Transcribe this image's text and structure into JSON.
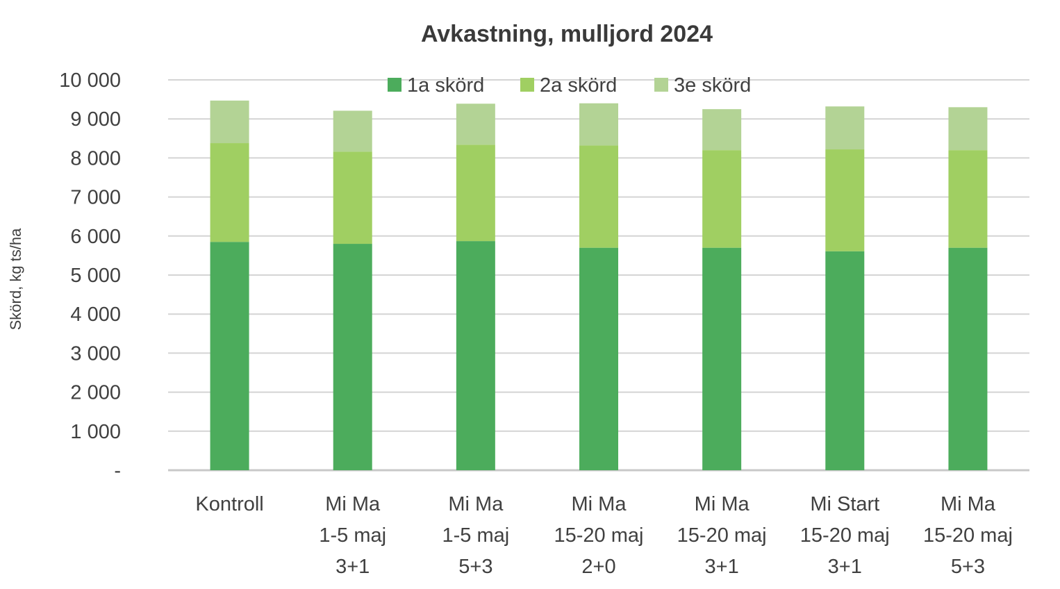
{
  "chart_data": {
    "type": "bar",
    "stacked": true,
    "title": "Avkastning, mulljord 2024",
    "ylabel": "Skörd, kg ts/ha",
    "xlabel": "",
    "ylim": [
      0,
      10000
    ],
    "yticks": [
      0,
      1000,
      2000,
      3000,
      4000,
      5000,
      6000,
      7000,
      8000,
      9000,
      10000
    ],
    "ytick_labels": [
      "-",
      "1 000",
      "2 000",
      "3 000",
      "4 000",
      "5 000",
      "6 000",
      "7 000",
      "8 000",
      "9 000",
      "10 000"
    ],
    "grid": true,
    "legend_position": "top",
    "categories": [
      [
        "Kontroll"
      ],
      [
        "Mi Ma",
        "1-5 maj",
        "3+1"
      ],
      [
        "Mi Ma",
        "1-5 maj",
        "5+3"
      ],
      [
        "Mi Ma",
        "15-20 maj",
        "2+0"
      ],
      [
        "Mi Ma",
        "15-20 maj",
        "3+1"
      ],
      [
        "Mi Start",
        "15-20 maj",
        "3+1"
      ],
      [
        "Mi Ma",
        "15-20 maj",
        "5+3"
      ]
    ],
    "series": [
      {
        "name": "1a skörd",
        "color": "#4cac5c",
        "values": [
          5850,
          5800,
          5870,
          5700,
          5700,
          5610,
          5700
        ]
      },
      {
        "name": "2a skörd",
        "color": "#a0cf62",
        "values": [
          2530,
          2360,
          2470,
          2620,
          2500,
          2610,
          2500
        ]
      },
      {
        "name": "3e skörd",
        "color": "#b3d395",
        "values": [
          1090,
          1050,
          1050,
          1080,
          1050,
          1100,
          1100
        ]
      }
    ]
  }
}
